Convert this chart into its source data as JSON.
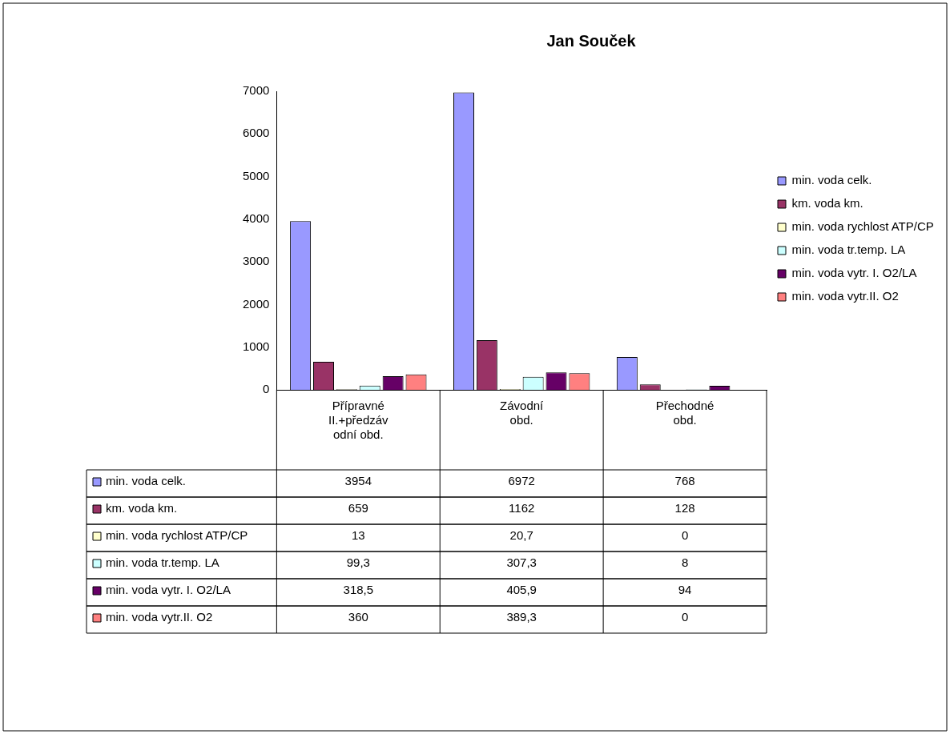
{
  "chart_data": {
    "type": "bar",
    "title": "Jan Souček",
    "categories": [
      "Přípravné II.+předzávodní obd.",
      "Závodní obd.",
      "Přechodné obd."
    ],
    "series": [
      {
        "name": "min. voda celk.",
        "color": "#9999ff",
        "values": [
          3954,
          6972,
          768
        ],
        "value_labels": [
          "3954",
          "6972",
          "768"
        ]
      },
      {
        "name": "km. voda km.",
        "color": "#993366",
        "values": [
          659,
          1162,
          128
        ],
        "value_labels": [
          "659",
          "1162",
          "128"
        ]
      },
      {
        "name": "min. voda rychlost ATP/CP",
        "color": "#ffffcc",
        "values": [
          13,
          20.7,
          0
        ],
        "value_labels": [
          "13",
          "20,7",
          "0"
        ]
      },
      {
        "name": "min. voda tr.temp. LA",
        "color": "#ccffff",
        "values": [
          99.3,
          307.3,
          8
        ],
        "value_labels": [
          "99,3",
          "307,3",
          "8"
        ]
      },
      {
        "name": "min. voda vytr. I. O2/LA",
        "color": "#660066",
        "values": [
          318.5,
          405.9,
          94
        ],
        "value_labels": [
          "318,5",
          "405,9",
          "94"
        ]
      },
      {
        "name": "min. voda vytr.II. O2",
        "color": "#ff8080",
        "values": [
          360,
          389.3,
          0
        ],
        "value_labels": [
          "360",
          "389,3",
          "0"
        ]
      }
    ],
    "ylim": [
      0,
      7000
    ],
    "yticks": [
      0,
      1000,
      2000,
      3000,
      4000,
      5000,
      6000,
      7000
    ],
    "grid": false,
    "legend": "right"
  }
}
